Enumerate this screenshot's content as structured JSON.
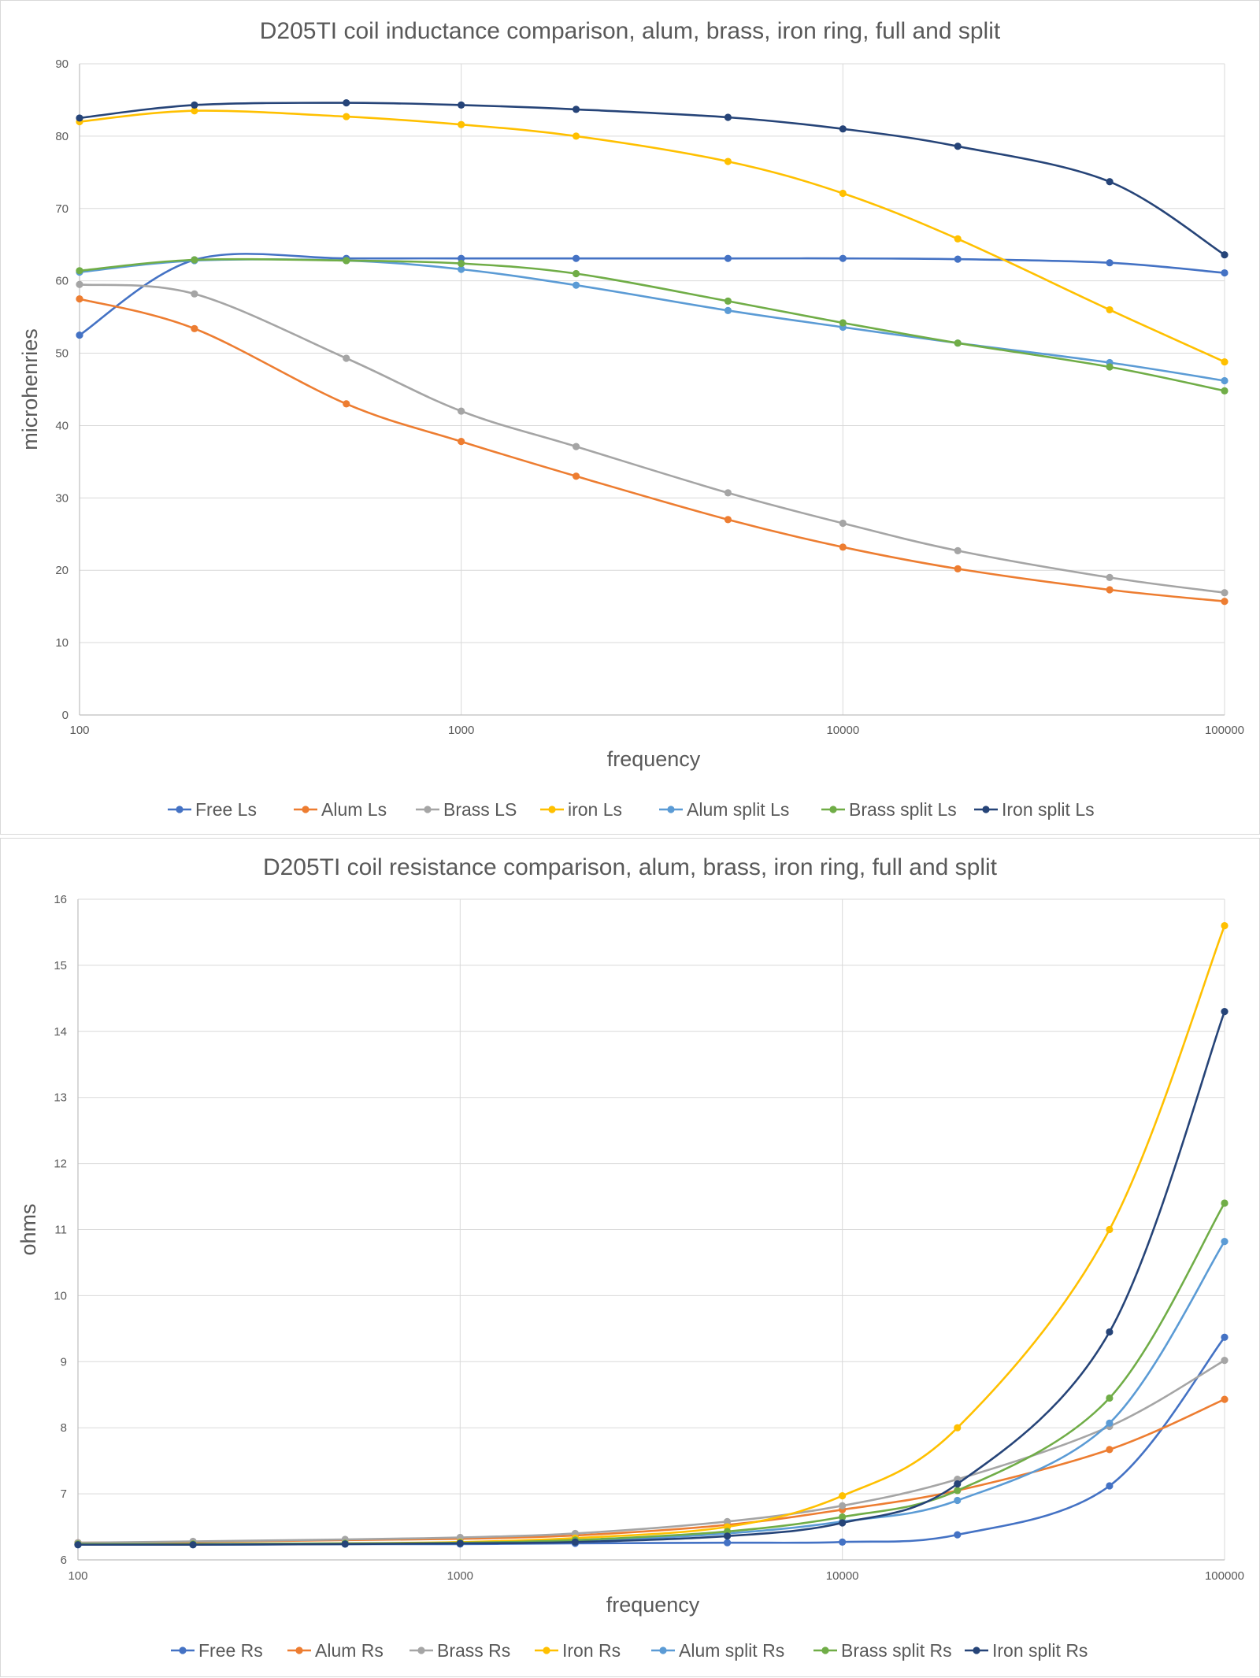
{
  "chart_data": [
    {
      "type": "line",
      "title": "D205TI coil inductance comparison, alum, brass, iron ring, full and split",
      "xlabel": "frequency",
      "ylabel": "microhenries",
      "x_scale": "log",
      "xlim": [
        100,
        100000
      ],
      "ylim": [
        0,
        90
      ],
      "x_ticks": [
        "100",
        "1000",
        "10000",
        "100000"
      ],
      "y_ticks": [
        "0",
        "10",
        "20",
        "30",
        "40",
        "50",
        "60",
        "70",
        "80",
        "90"
      ],
      "grid": true,
      "legend_position": "bottom",
      "x": [
        100,
        200,
        500,
        1000,
        2000,
        5000,
        10000,
        20000,
        50000,
        100000
      ],
      "series": [
        {
          "name": "Free Ls",
          "color": "#4472C4",
          "values": [
            52.5,
            62.9,
            63.1,
            63.1,
            63.1,
            63.1,
            63.1,
            63.0,
            62.5,
            61.1
          ]
        },
        {
          "name": "Alum Ls",
          "color": "#ED7D31",
          "values": [
            57.5,
            53.4,
            43.0,
            37.8,
            33.0,
            27.0,
            23.2,
            20.2,
            17.3,
            15.7
          ]
        },
        {
          "name": "Brass LS",
          "color": "#A5A5A5",
          "values": [
            59.5,
            58.2,
            49.3,
            42.0,
            37.1,
            30.7,
            26.5,
            22.7,
            19.0,
            16.9
          ]
        },
        {
          "name": "iron Ls",
          "color": "#FFC000",
          "values": [
            82.0,
            83.5,
            82.7,
            81.6,
            80.0,
            76.5,
            72.1,
            65.8,
            56.0,
            48.8
          ]
        },
        {
          "name": "Alum split Ls",
          "color": "#5B9BD5",
          "values": [
            61.2,
            62.8,
            62.8,
            61.6,
            59.4,
            55.9,
            53.6,
            51.4,
            48.7,
            46.2
          ]
        },
        {
          "name": "Brass split Ls",
          "color": "#70AD47",
          "values": [
            61.4,
            62.9,
            62.8,
            62.4,
            61.0,
            57.2,
            54.2,
            51.4,
            48.1,
            44.8
          ]
        },
        {
          "name": "Iron split Ls",
          "color": "#264478",
          "values": [
            82.5,
            84.3,
            84.6,
            84.3,
            83.7,
            82.6,
            81.0,
            78.6,
            73.7,
            63.6
          ]
        }
      ]
    },
    {
      "type": "line",
      "title": "D205TI coil resistance comparison, alum, brass, iron ring, full and split",
      "xlabel": "frequency",
      "ylabel": "ohms",
      "x_scale": "log",
      "xlim": [
        100,
        100000
      ],
      "ylim": [
        6,
        16
      ],
      "x_ticks": [
        "100",
        "1000",
        "10000",
        "100000"
      ],
      "y_ticks": [
        "6",
        "7",
        "8",
        "9",
        "10",
        "11",
        "12",
        "13",
        "14",
        "15",
        "16"
      ],
      "grid": true,
      "legend_position": "bottom",
      "x": [
        100,
        200,
        500,
        1000,
        2000,
        5000,
        10000,
        20000,
        50000,
        100000
      ],
      "series": [
        {
          "name": "Free Rs",
          "color": "#4472C4",
          "values": [
            6.23,
            6.23,
            6.24,
            6.24,
            6.25,
            6.26,
            6.27,
            6.38,
            7.12,
            9.37
          ]
        },
        {
          "name": "Alum Rs",
          "color": "#ED7D31",
          "values": [
            6.26,
            6.27,
            6.3,
            6.32,
            6.37,
            6.53,
            6.76,
            7.05,
            7.67,
            8.43
          ]
        },
        {
          "name": "Brass Rs",
          "color": "#A5A5A5",
          "values": [
            6.26,
            6.28,
            6.31,
            6.34,
            6.4,
            6.58,
            6.82,
            7.22,
            8.02,
            9.02
          ]
        },
        {
          "name": "Iron Rs",
          "color": "#FFC000",
          "values": [
            6.24,
            6.24,
            6.25,
            6.27,
            6.33,
            6.5,
            6.97,
            8.0,
            11.0,
            15.6
          ]
        },
        {
          "name": "Alum split Rs",
          "color": "#5B9BD5",
          "values": [
            6.23,
            6.23,
            6.24,
            6.25,
            6.28,
            6.4,
            6.58,
            6.9,
            8.07,
            10.82
          ]
        },
        {
          "name": "Brass split Rs",
          "color": "#70AD47",
          "values": [
            6.24,
            6.24,
            6.25,
            6.26,
            6.3,
            6.43,
            6.65,
            7.05,
            8.45,
            11.4
          ]
        },
        {
          "name": "Iron split Rs",
          "color": "#264478",
          "values": [
            6.23,
            6.23,
            6.24,
            6.25,
            6.27,
            6.36,
            6.56,
            7.15,
            9.45,
            14.3
          ]
        }
      ]
    }
  ]
}
